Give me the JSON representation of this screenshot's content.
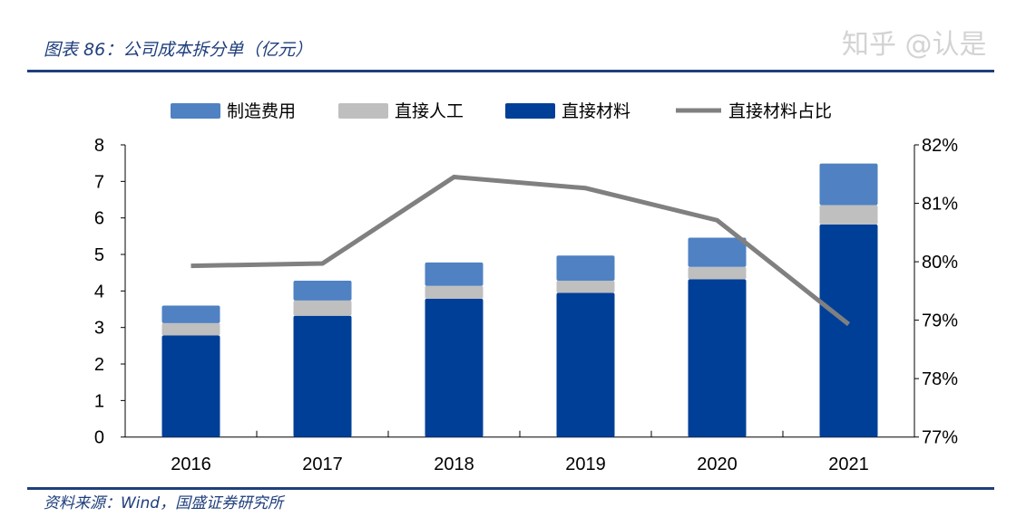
{
  "header": {
    "title": "图表 86：公司成本拆分单（亿元）"
  },
  "footer": {
    "source": "资料来源：Wind，国盛证券研究所",
    "watermark": "知乎 @认是"
  },
  "colors": {
    "manufacturing": "#4F81C3",
    "labor": "#BFBFBF",
    "material": "#003F98",
    "ratio_line": "#808080",
    "rule": "#1F3E7C"
  },
  "chart_data": {
    "type": "bar",
    "stacked": true,
    "title": "图表 86：公司成本拆分单（亿元）",
    "categories": [
      "2016",
      "2017",
      "2018",
      "2019",
      "2020",
      "2021"
    ],
    "series": [
      {
        "name": "直接材料",
        "type": "bar",
        "axis": "left",
        "values": [
          2.78,
          3.32,
          3.79,
          3.95,
          4.32,
          5.82
        ]
      },
      {
        "name": "直接人工",
        "type": "bar",
        "axis": "left",
        "values": [
          0.34,
          0.42,
          0.35,
          0.33,
          0.34,
          0.53
        ]
      },
      {
        "name": "制造费用",
        "type": "bar",
        "axis": "left",
        "values": [
          0.48,
          0.54,
          0.64,
          0.69,
          0.8,
          1.14
        ]
      },
      {
        "name": "直接材料占比",
        "type": "line",
        "axis": "right",
        "values": [
          79.93,
          79.97,
          81.45,
          81.26,
          80.71,
          78.93
        ]
      }
    ],
    "legend_order": [
      "制造费用",
      "直接人工",
      "直接材料",
      "直接材料占比"
    ],
    "legend_position": "top",
    "y_left": {
      "lim": [
        0,
        8
      ],
      "ticks": [
        "0",
        "1",
        "2",
        "3",
        "4",
        "5",
        "6",
        "7",
        "8"
      ]
    },
    "y_right": {
      "lim": [
        77,
        82
      ],
      "ticks": [
        "77%",
        "78%",
        "79%",
        "80%",
        "81%",
        "82%"
      ]
    },
    "grid": false
  }
}
